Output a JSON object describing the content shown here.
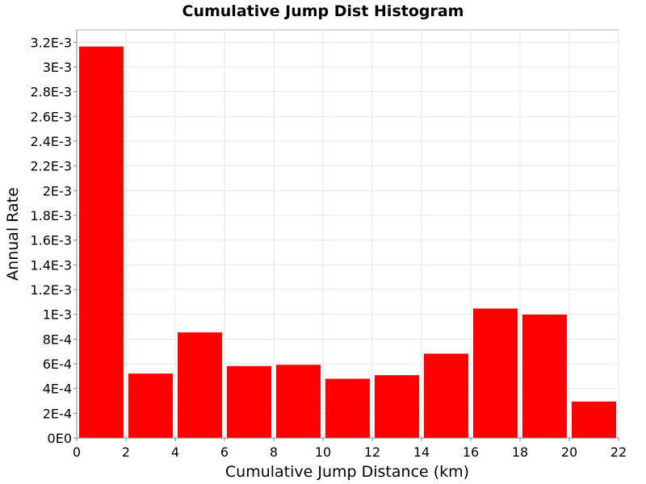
{
  "chart_data": {
    "type": "bar",
    "title": "Cumulative Jump Dist Histogram",
    "xlabel": "Cumulative Jump Distance (km)",
    "ylabel": "Annual Rate",
    "bin_width": 2,
    "x": [
      1,
      3,
      5,
      7,
      9,
      11,
      13,
      15,
      17,
      19,
      21
    ],
    "values": [
      0.003165,
      0.000521,
      0.000854,
      0.000582,
      0.000592,
      0.000479,
      0.000508,
      0.000682,
      0.001047,
      0.000998,
      0.000295
    ],
    "xlim": [
      0,
      22
    ],
    "ylim": [
      0,
      0.0033
    ],
    "x_ticks": [
      0,
      2,
      4,
      6,
      8,
      10,
      12,
      14,
      16,
      18,
      20,
      22
    ],
    "x_tick_labels": [
      "0",
      "2",
      "4",
      "6",
      "8",
      "10",
      "12",
      "14",
      "16",
      "18",
      "20",
      "22"
    ],
    "y_ticks": [
      0,
      0.0002,
      0.0004,
      0.0006,
      0.0008,
      0.001,
      0.0012,
      0.0014,
      0.0016,
      0.0018,
      0.002,
      0.0022,
      0.0024,
      0.0026,
      0.0028,
      0.003,
      0.0032
    ],
    "y_tick_labels": [
      "0E0",
      "2E-4",
      "4E-4",
      "6E-4",
      "8E-4",
      "1E-3",
      "1.2E-3",
      "1.4E-3",
      "1.6E-3",
      "1.8E-3",
      "2E-3",
      "2.2E-3",
      "2.4E-3",
      "2.6E-3",
      "2.8E-3",
      "3E-3",
      "3.2E-3"
    ],
    "grid": true,
    "bar_color": "#ff0000"
  }
}
